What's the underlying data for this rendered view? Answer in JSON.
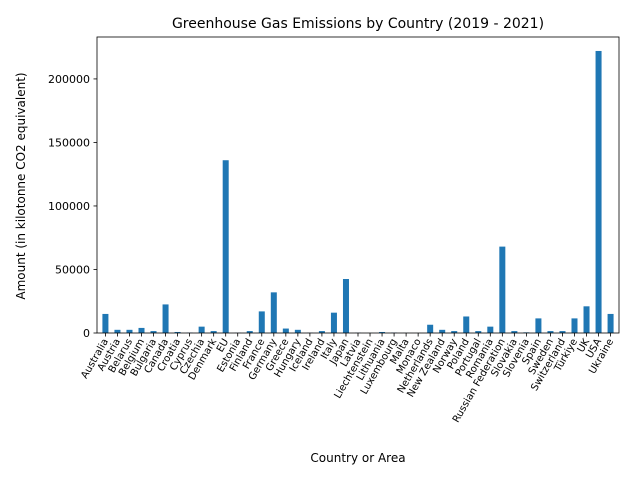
{
  "chart_data": {
    "type": "bar",
    "title": "Greenhouse Gas Emissions by Country (2019 - 2021)",
    "xlabel": "Country or Area",
    "ylabel": "Amount (in kilotonne CO2 equivalent)",
    "ylim": [
      0,
      233000
    ],
    "yticks": [
      0,
      50000,
      100000,
      150000,
      200000
    ],
    "grid": false,
    "legend": "none",
    "bar_color": "#1f77b4",
    "categories": [
      "Australia",
      "Austria",
      "Belarus",
      "Belgium",
      "Bulgaria",
      "Canada",
      "Croatia",
      "Cyprus",
      "Czechia",
      "Denmark",
      "EU",
      "Estonia",
      "Finland",
      "France",
      "Germany",
      "Greece",
      "Hungary",
      "Iceland",
      "Ireland",
      "Italy",
      "Japan",
      "Latvia",
      "Liechtenstein",
      "Lithuania",
      "Luxembourg",
      "Malta",
      "Monaco",
      "Netherlands",
      "New Zealand",
      "Norway",
      "Poland",
      "Portugal",
      "Romania",
      "Russian Federation",
      "Slovakia",
      "Slovenia",
      "Spain",
      "Sweden",
      "Switzerland",
      "Türkiye",
      "UK",
      "USA",
      "Ukraine"
    ],
    "values": [
      15000,
      2500,
      2500,
      4000,
      1500,
      22500,
      800,
      300,
      5000,
      1500,
      136000,
      200,
      1500,
      17000,
      32000,
      3500,
      2500,
      200,
      1500,
      16000,
      42500,
      200,
      50,
      800,
      300,
      100,
      50,
      6500,
      2500,
      1500,
      13000,
      1500,
      5000,
      68000,
      1500,
      500,
      11500,
      1500,
      1500,
      11500,
      21000,
      222000,
      15000
    ]
  }
}
